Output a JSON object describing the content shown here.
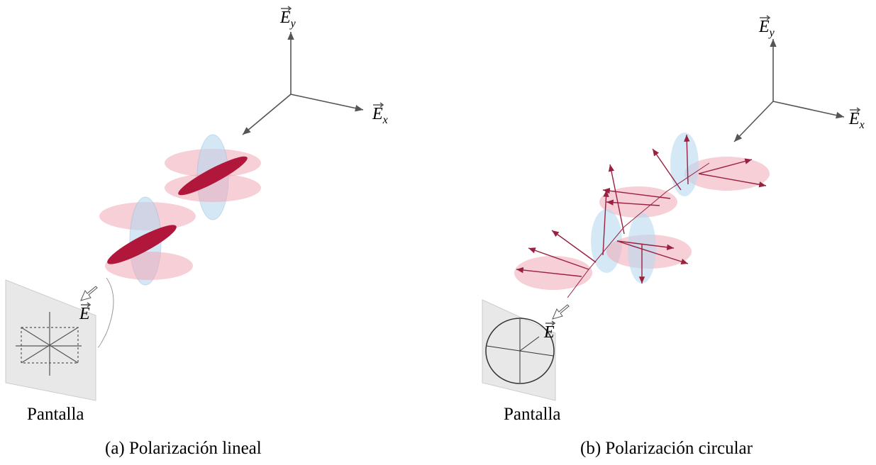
{
  "panels": [
    {
      "axis_y": {
        "base": "E",
        "sub": "y"
      },
      "axis_x": {
        "base": "E",
        "sub": "x"
      },
      "field": "E",
      "screen": "Pantalla",
      "caption": "(a) Polarización lineal"
    },
    {
      "axis_y": {
        "base": "E",
        "sub": "y"
      },
      "axis_x": {
        "base": "E",
        "sub": "x"
      },
      "field": "E",
      "screen": "Pantalla",
      "caption": "(b) Polarización circular"
    }
  ]
}
